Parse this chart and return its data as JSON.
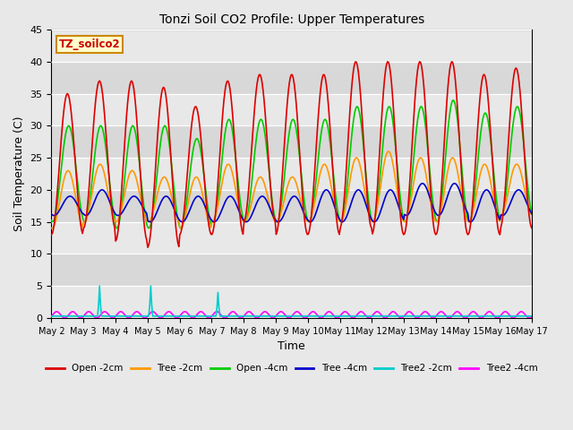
{
  "title": "Tonzi Soil CO2 Profile: Upper Temperatures",
  "xlabel": "Time",
  "ylabel": "Soil Temperature (C)",
  "ylim": [
    0,
    45
  ],
  "watermark": "TZ_soilco2",
  "fig_bg": "#e8e8e8",
  "plot_bg": "#d8d8d8",
  "series_colors": {
    "open_2cm": "#dd0000",
    "tree_2cm": "#ff9900",
    "open_4cm": "#00cc00",
    "tree_4cm": "#0000cc",
    "tree2_2cm": "#00cccc",
    "tree2_4cm": "#ff00ff"
  },
  "legend_labels": [
    "Open -2cm",
    "Tree -2cm",
    "Open -4cm",
    "Tree -4cm",
    "Tree2 -2cm",
    "Tree2 -4cm"
  ],
  "tick_labels": [
    "May 2",
    "May 3",
    "May 4",
    "May 5",
    "May 6",
    "May 7",
    "May 8",
    "May 9",
    "May 10",
    "May 11",
    "May 12",
    "May 13",
    "May 14",
    "May 15",
    "May 16",
    "May 17"
  ],
  "yticks": [
    0,
    5,
    10,
    15,
    20,
    25,
    30,
    35,
    40,
    45
  ],
  "band_colors": [
    "#e8e8e8",
    "#d8d8d8"
  ],
  "n_pts": 480
}
